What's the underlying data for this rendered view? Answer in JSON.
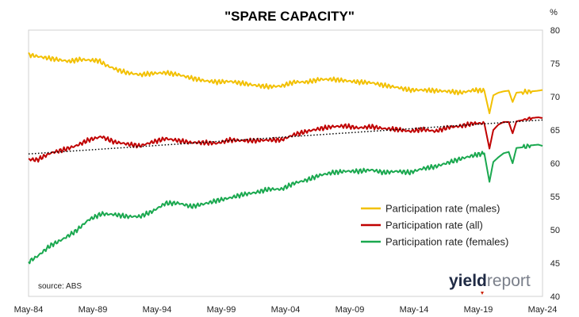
{
  "chart_data": {
    "type": "line",
    "title": "\"SPARE CAPACITY\"",
    "unit_label": "%",
    "xlabel": "",
    "ylabel": "",
    "ylim": [
      40,
      80
    ],
    "yticks": [
      "80",
      "75",
      "70",
      "65",
      "60",
      "55",
      "50",
      "45",
      "40"
    ],
    "x_tick_labels": [
      "May-84",
      "May-89",
      "May-94",
      "May-99",
      "May-04",
      "May-09",
      "May-14",
      "May-19",
      "May-24"
    ],
    "x_tick_years": [
      1984.33,
      1989.33,
      1994.33,
      1999.33,
      2004.33,
      2009.33,
      2014.33,
      2019.33,
      2024.33
    ],
    "xlim": [
      1984.33,
      2024.33
    ],
    "grid": false,
    "legend_position": "center-right",
    "source": "source: ABS",
    "logo": {
      "part1": "yield",
      "part2": "report"
    },
    "series": [
      {
        "name": "Participation rate (males)",
        "color": "#F2C000",
        "x": [
          1984.33,
          1985.5,
          1986.5,
          1987.5,
          1988.3,
          1989.0,
          1989.8,
          1990.5,
          1991.3,
          1992.0,
          1993.0,
          1994.0,
          1995.0,
          1996.0,
          1997.0,
          1998.0,
          1999.0,
          2000.0,
          2001.0,
          2002.0,
          2003.0,
          2004.0,
          2005.0,
          2006.0,
          2007.0,
          2008.0,
          2009.0,
          2010.0,
          2011.0,
          2012.0,
          2013.0,
          2014.0,
          2015.0,
          2016.0,
          2017.0,
          2018.0,
          2019.0,
          2019.8,
          2020.2,
          2020.5,
          2020.9,
          2021.3,
          2021.7,
          2022.0,
          2022.3,
          2022.8,
          2023.5,
          2024.0,
          2024.33
        ],
        "values": [
          76.3,
          75.9,
          75.6,
          75.3,
          75.6,
          75.5,
          75.4,
          74.6,
          74.0,
          73.6,
          73.3,
          73.5,
          73.6,
          73.3,
          72.8,
          72.4,
          72.2,
          72.3,
          72.0,
          71.7,
          71.5,
          71.6,
          72.2,
          72.2,
          72.6,
          72.6,
          72.4,
          72.2,
          72.1,
          71.7,
          71.4,
          71.0,
          71.0,
          70.9,
          70.8,
          70.6,
          71.0,
          70.9,
          67.5,
          70.2,
          70.6,
          70.8,
          70.9,
          69.2,
          70.6,
          70.7,
          70.8,
          70.9,
          71.0
        ]
      },
      {
        "name": "Participation rate (all)",
        "color": "#C00000",
        "x": [
          1984.33,
          1985.0,
          1986.0,
          1987.0,
          1988.0,
          1989.0,
          1990.0,
          1991.0,
          1992.0,
          1993.0,
          1994.0,
          1995.0,
          1996.0,
          1997.0,
          1998.0,
          1999.0,
          2000.0,
          2001.0,
          2002.0,
          2003.0,
          2004.0,
          2005.0,
          2006.0,
          2007.0,
          2008.0,
          2009.0,
          2010.0,
          2011.0,
          2012.0,
          2013.0,
          2014.0,
          2015.0,
          2016.0,
          2017.0,
          2018.0,
          2019.0,
          2019.8,
          2020.2,
          2020.5,
          2020.9,
          2021.3,
          2021.7,
          2022.0,
          2022.3,
          2022.8,
          2023.5,
          2024.0,
          2024.33
        ],
        "values": [
          60.6,
          60.5,
          61.5,
          62.0,
          62.6,
          63.5,
          64.0,
          63.2,
          62.9,
          62.6,
          63.2,
          63.7,
          63.4,
          63.1,
          63.1,
          63.0,
          63.5,
          63.4,
          63.4,
          63.5,
          63.5,
          64.3,
          64.8,
          65.2,
          65.5,
          65.6,
          65.3,
          65.5,
          65.2,
          65.1,
          64.8,
          65.1,
          64.8,
          65.4,
          65.6,
          66.0,
          66.0,
          62.2,
          65.0,
          65.8,
          66.2,
          66.2,
          64.5,
          66.3,
          66.5,
          66.8,
          66.9,
          66.8
        ]
      },
      {
        "name": "Participation rate (females)",
        "color": "#1AA84F",
        "x": [
          1984.33,
          1985.0,
          1986.0,
          1987.0,
          1988.0,
          1989.0,
          1990.0,
          1991.0,
          1992.0,
          1993.0,
          1994.0,
          1995.0,
          1996.0,
          1997.0,
          1998.0,
          1999.0,
          2000.0,
          2001.0,
          2002.0,
          2003.0,
          2004.0,
          2005.0,
          2006.0,
          2007.0,
          2008.0,
          2009.0,
          2010.0,
          2011.0,
          2012.0,
          2013.0,
          2014.0,
          2015.0,
          2016.0,
          2017.0,
          2018.0,
          2019.0,
          2019.8,
          2020.2,
          2020.5,
          2020.9,
          2021.3,
          2021.7,
          2022.0,
          2022.3,
          2022.8,
          2023.5,
          2024.0,
          2024.33
        ],
        "values": [
          45.2,
          46.0,
          47.6,
          48.6,
          49.8,
          51.5,
          52.4,
          52.3,
          52.0,
          52.0,
          52.8,
          54.0,
          54.0,
          53.5,
          53.9,
          54.4,
          54.8,
          55.3,
          55.6,
          56.1,
          56.1,
          57.0,
          57.5,
          58.2,
          58.6,
          58.8,
          58.8,
          59.0,
          58.6,
          58.8,
          58.6,
          59.2,
          59.5,
          60.1,
          60.7,
          61.2,
          61.5,
          57.2,
          60.2,
          60.9,
          61.5,
          61.7,
          60.0,
          62.3,
          62.4,
          62.7,
          62.8,
          62.6
        ]
      }
    ],
    "trendline": {
      "style": "dotted",
      "color": "#000000",
      "x": [
        1984.33,
        2024.33
      ],
      "values": [
        61.4,
        66.5
      ]
    }
  }
}
